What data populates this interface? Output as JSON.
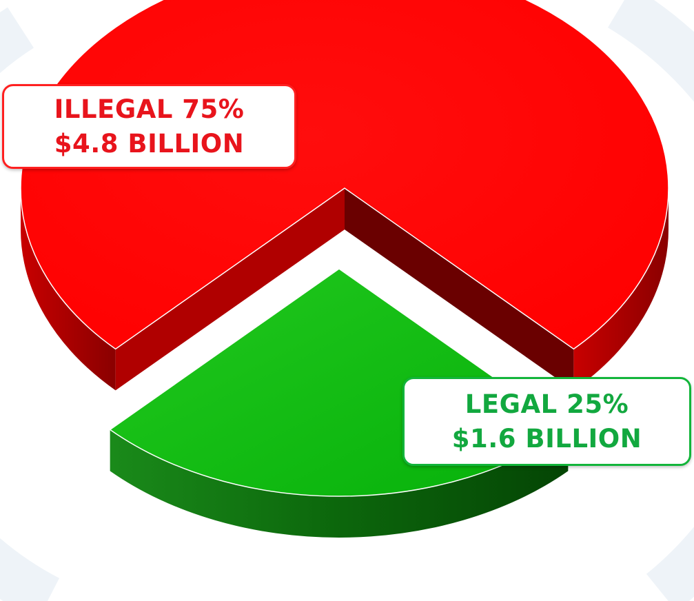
{
  "chart_data": {
    "type": "pie",
    "slices": [
      {
        "name": "ILLEGAL",
        "percent_label": "75%",
        "amount_label": "$4.8 BILLION",
        "value": 75,
        "color": "#ff0000"
      },
      {
        "name": "LEGAL",
        "percent_label": "25%",
        "amount_label": "$1.6 BILLION",
        "value": 25,
        "color": "#0db816"
      }
    ],
    "title": "",
    "legend": "none",
    "style": "3d-exploded"
  },
  "labels": {
    "illegal_line1": "ILLEGAL 75%",
    "illegal_line2": "$4.8 BILLION",
    "legal_line1": "LEGAL 25%",
    "legal_line2": "$1.6 BILLION"
  },
  "colors": {
    "illegal": "#ff0000",
    "illegal_side": "#a00000",
    "legal": "#0db816",
    "legal_side": "#0a6a0a",
    "illegal_text": "#e8141c",
    "legal_text": "#12a83f",
    "background_pattern": "#eaf1f7"
  }
}
